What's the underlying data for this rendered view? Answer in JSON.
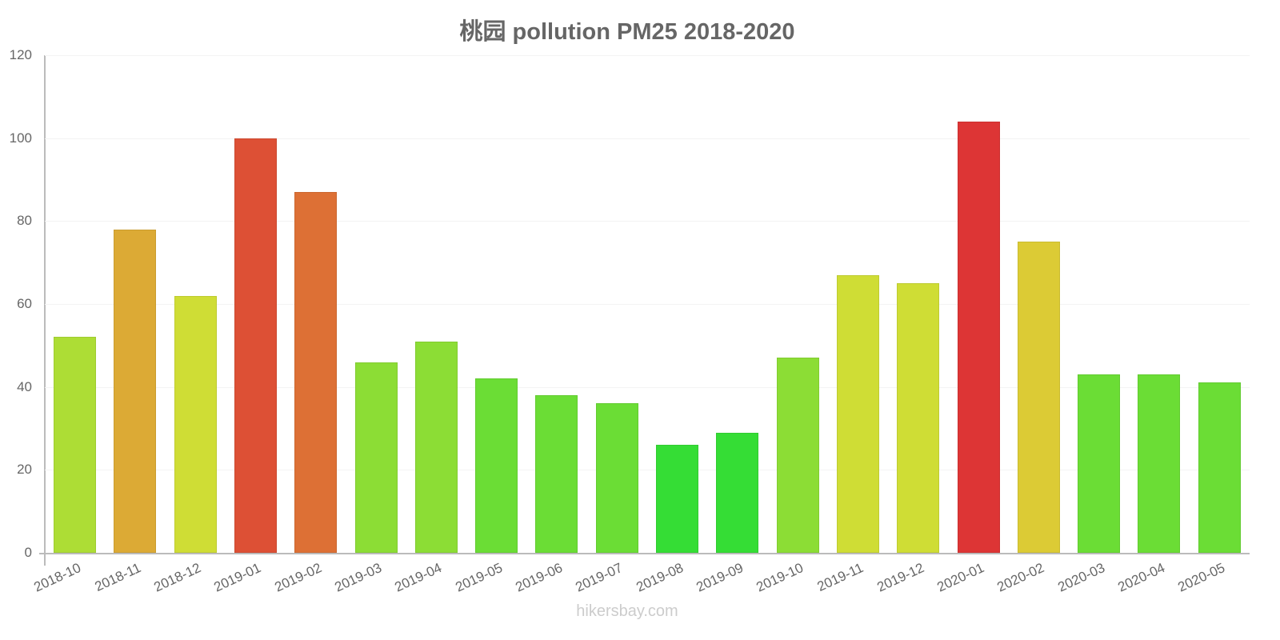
{
  "chart_data": {
    "type": "bar",
    "title": "桃园 pollution PM25 2018-2020",
    "xlabel": "",
    "ylabel": "",
    "ylim": [
      0,
      120
    ],
    "yticks": [
      0,
      20,
      40,
      60,
      80,
      100,
      120
    ],
    "grid": true,
    "legend": null,
    "categories": [
      "2018-10",
      "2018-11",
      "2018-12",
      "2019-01",
      "2019-02",
      "2019-03",
      "2019-04",
      "2019-05",
      "2019-06",
      "2019-07",
      "2019-08",
      "2019-09",
      "2019-10",
      "2019-11",
      "2019-12",
      "2020-01",
      "2020-02",
      "2020-03",
      "2020-04",
      "2020-05"
    ],
    "values": [
      52,
      78,
      62,
      100,
      87,
      46,
      51,
      42,
      38,
      36,
      26,
      29,
      47,
      67,
      65,
      104,
      75,
      43,
      43,
      41
    ],
    "colors": [
      "#addd35",
      "#dcaa35",
      "#cfdd35",
      "#dd5035",
      "#dd7035",
      "#8cdd35",
      "#8cdd35",
      "#6bdd35",
      "#6bdd35",
      "#6bdd35",
      "#35dd35",
      "#35dd35",
      "#8cdd35",
      "#cfdd35",
      "#cfdd35",
      "#dd3535",
      "#dccb35",
      "#6bdd35",
      "#6bdd35",
      "#6bdd35"
    ]
  },
  "watermark": "hikersbay.com"
}
